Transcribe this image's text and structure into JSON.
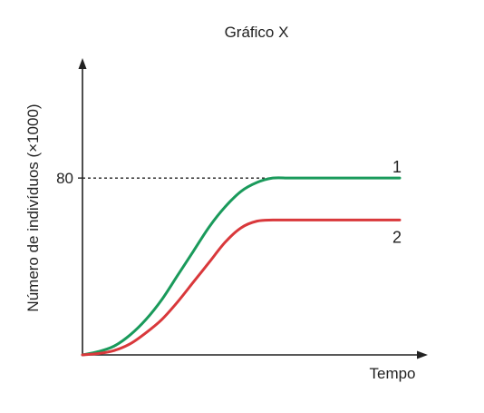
{
  "chart_data": {
    "type": "line",
    "title": "Gráfico X",
    "xlabel": "Tempo",
    "ylabel": "Número de indivíduos (×1000)",
    "y_ticks": [
      {
        "value": 80,
        "label": "80"
      }
    ],
    "x_ticks": [],
    "xlim": [
      0,
      100
    ],
    "ylim": [
      0,
      140
    ],
    "grid": false,
    "reference_lines": [
      {
        "axis": "y",
        "value": 80,
        "style": "dashed",
        "from_x": 0,
        "to_x": 60
      }
    ],
    "series": [
      {
        "name": "1",
        "color": "#1a9a5b",
        "x": [
          0,
          5,
          10,
          15,
          20,
          25,
          30,
          35,
          40,
          45,
          50,
          55,
          60,
          65,
          70,
          75,
          80,
          85,
          90,
          95,
          100
        ],
        "values": [
          0,
          1.5,
          4,
          9,
          16,
          25,
          36,
          47,
          58,
          67,
          74,
          78,
          80,
          80,
          80,
          80,
          80,
          80,
          80,
          80,
          80
        ]
      },
      {
        "name": "2",
        "color": "#d9383b",
        "x": [
          0,
          5,
          10,
          15,
          20,
          25,
          30,
          35,
          40,
          45,
          50,
          55,
          60,
          65,
          70,
          75,
          80,
          85,
          90,
          95,
          100
        ],
        "values": [
          0,
          0.6,
          2,
          5,
          10,
          16,
          24,
          33,
          42,
          51,
          57.5,
          60.5,
          61,
          61,
          61,
          61,
          61,
          61,
          61,
          61,
          61
        ]
      }
    ]
  }
}
